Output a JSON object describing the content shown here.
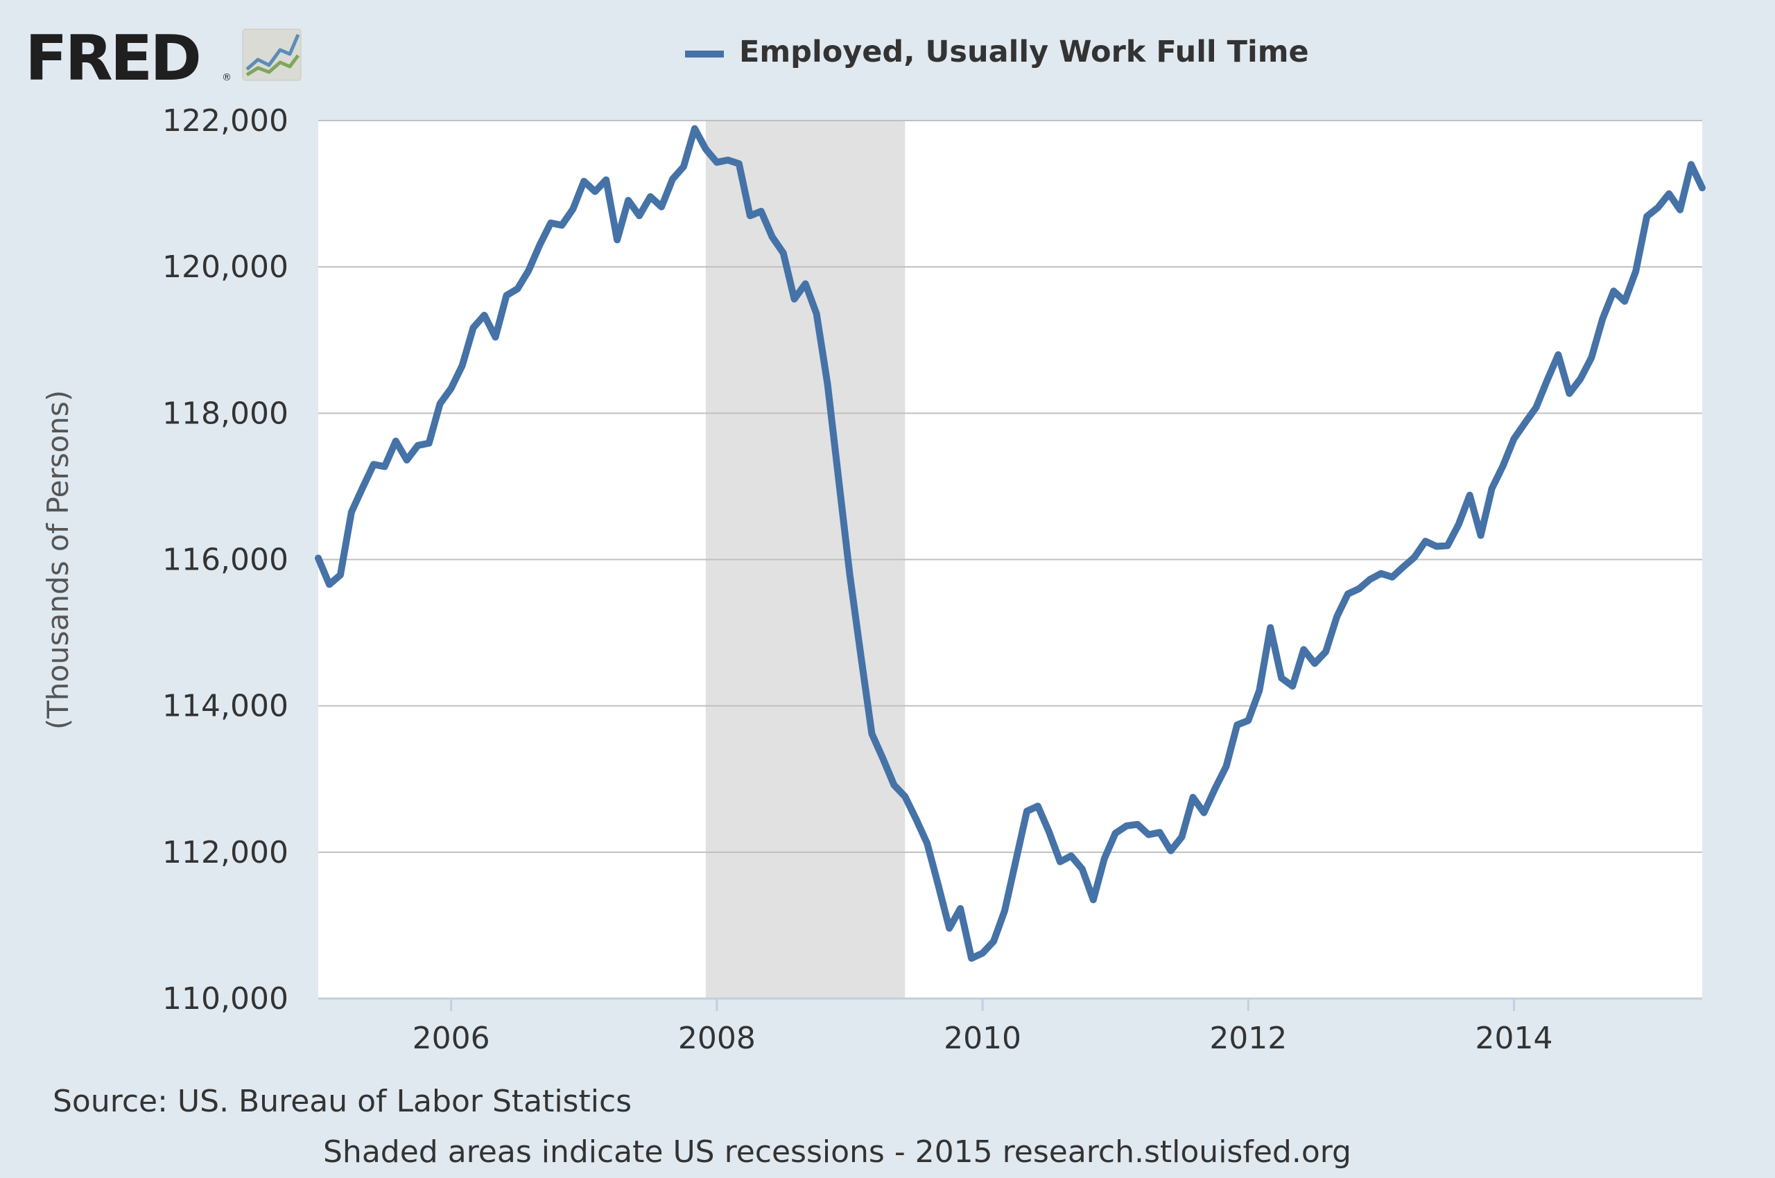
{
  "logo": {
    "text": "FRED",
    "icon": "fred-graph-icon"
  },
  "colors": {
    "background": "#e1e9f0",
    "plot_background": "#ffffff",
    "series": "#4572a7",
    "recession": "#e1e1e1",
    "grid": "#c0c0c0",
    "text": "#333333",
    "text_muted": "#555555",
    "logo": "#1f1f1f"
  },
  "footer": {
    "source": "Source: US. Bureau of Labor Statistics",
    "note": "Shaded areas indicate US recessions - 2015 research.stlouisfed.org"
  },
  "chart_data": {
    "type": "line",
    "title": "",
    "ylabel": "(Thousands of Persons)",
    "xlabel": "",
    "xlim": [
      "2005-01",
      "2015-06"
    ],
    "ylim": [
      110000,
      122000
    ],
    "y_ticks": [
      "110,000",
      "112,000",
      "114,000",
      "116,000",
      "118,000",
      "120,000",
      "122,000"
    ],
    "x_ticks": [
      "2006",
      "2008",
      "2010",
      "2012",
      "2014"
    ],
    "grid": true,
    "legend_position": "top-center",
    "recessions": [
      {
        "start": "2007-12",
        "end": "2009-06"
      }
    ],
    "series": [
      {
        "name": "Employed, Usually Work Full Time",
        "start": "2005-01",
        "frequency": "monthly",
        "values": [
          116020,
          115660,
          115790,
          116650,
          116980,
          117300,
          117270,
          117620,
          117360,
          117560,
          117590,
          118130,
          118340,
          118650,
          119170,
          119340,
          119040,
          119610,
          119700,
          119950,
          120300,
          120600,
          120570,
          120790,
          121170,
          121030,
          121190,
          120370,
          120910,
          120700,
          120960,
          120820,
          121200,
          121370,
          121890,
          121610,
          121430,
          121460,
          121410,
          120700,
          120760,
          120410,
          120190,
          119560,
          119770,
          119360,
          118400,
          117100,
          115800,
          114700,
          113620,
          113280,
          112920,
          112760,
          112450,
          112120,
          111550,
          110960,
          111230,
          110550,
          110620,
          110780,
          111200,
          111880,
          112560,
          112630,
          112280,
          111870,
          111950,
          111770,
          111350,
          111910,
          112260,
          112360,
          112380,
          112240,
          112270,
          112020,
          112210,
          112750,
          112540,
          112870,
          113170,
          113740,
          113800,
          114210,
          115070,
          114380,
          114270,
          114770,
          114580,
          114740,
          115220,
          115530,
          115600,
          115730,
          115810,
          115760,
          115900,
          116030,
          116250,
          116180,
          116190,
          116480,
          116880,
          116330,
          116970,
          117280,
          117650,
          117870,
          118080,
          118450,
          118800,
          118270,
          118470,
          118760,
          119290,
          119670,
          119530,
          119940,
          120690,
          120810,
          121000,
          120780,
          121400,
          121080
        ]
      }
    ]
  }
}
